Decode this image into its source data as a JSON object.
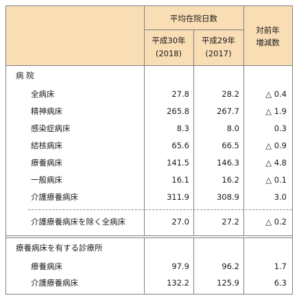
{
  "header": {
    "avg_stay_label": "平均在院日数",
    "col_2018_line1": "平成30年",
    "col_2018_line2": "(2018)",
    "col_2017_line1": "平成29年",
    "col_2017_line2": "(2017)",
    "change_line1": "対前年",
    "change_line2": "増減数"
  },
  "hospital_section": {
    "title": "病 院",
    "rows": [
      {
        "label": "全病床",
        "v2018": "27.8",
        "v2017": "28.2",
        "change": "△ 0.4"
      },
      {
        "label": "精神病床",
        "v2018": "265.8",
        "v2017": "267.7",
        "change": "△ 1.9"
      },
      {
        "label": "感染症病床",
        "v2018": "8.3",
        "v2017": "8.0",
        "change": "0.3"
      },
      {
        "label": "結核病床",
        "v2018": "65.6",
        "v2017": "66.5",
        "change": "△ 0.9"
      },
      {
        "label": "療養病床",
        "v2018": "141.5",
        "v2017": "146.3",
        "change": "△ 4.8"
      },
      {
        "label": "一般病床",
        "v2018": "16.1",
        "v2017": "16.2",
        "change": "△ 0.1"
      },
      {
        "label": "介護療養病床",
        "v2018": "311.9",
        "v2017": "308.9",
        "change": "3.0"
      }
    ],
    "excluding_row": {
      "label": "介護療養病床を除く全病床",
      "v2018": "27.0",
      "v2017": "27.2",
      "change": "△ 0.2"
    }
  },
  "clinic_section": {
    "title": "療養病床を有する診療所",
    "rows": [
      {
        "label": "療養病床",
        "v2018": "97.9",
        "v2017": "96.2",
        "change": "1.7"
      },
      {
        "label": "介護療養病床",
        "v2018": "132.2",
        "v2017": "125.9",
        "change": "6.3"
      }
    ]
  },
  "colors": {
    "header_bg": "#f9ddb5",
    "border": "#7f7f7f"
  }
}
